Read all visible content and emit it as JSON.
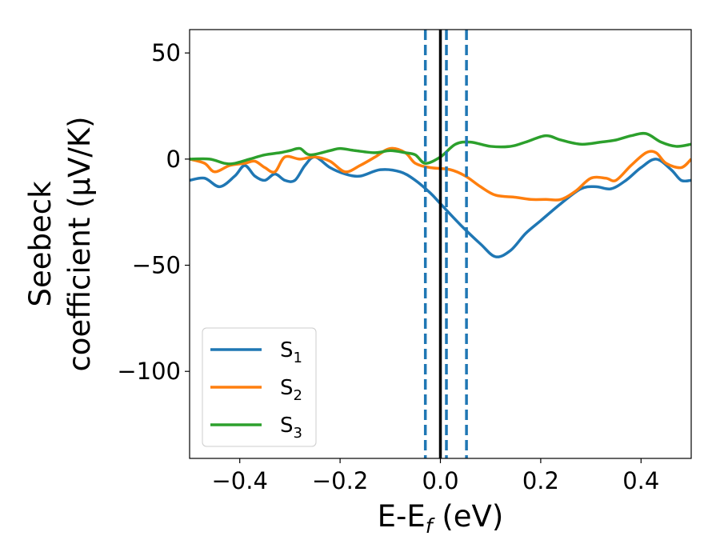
{
  "chart_data": {
    "type": "line",
    "xlabel": "E-E",
    "xlabel_sub": "f",
    "xlabel_unit": " (eV)",
    "ylabel_line1": "Seebeck",
    "ylabel_line2": "coefficient  (μV/K)",
    "xlim": [
      -0.5,
      0.5
    ],
    "ylim": [
      -141,
      61
    ],
    "xticks": [
      -0.4,
      -0.2,
      0.0,
      0.2,
      0.4
    ],
    "xtick_labels": [
      "−0.4",
      "−0.2",
      "0.0",
      "0.2",
      "0.4"
    ],
    "yticks": [
      50,
      0,
      -50,
      -100
    ],
    "ytick_labels": [
      "50",
      "0",
      "−50",
      "−100"
    ],
    "grid": false,
    "legend_position": "lower-left",
    "vlines": [
      {
        "x": 0.0,
        "style": "solid",
        "color": "#000000"
      },
      {
        "x": -0.03,
        "style": "dashed",
        "color": "#1f77b4"
      },
      {
        "x": 0.012,
        "style": "dashed",
        "color": "#1f77b4"
      },
      {
        "x": 0.052,
        "style": "dashed",
        "color": "#1f77b4"
      }
    ],
    "series": [
      {
        "name": "S",
        "sub": "1",
        "color": "#1f77b4",
        "points": [
          [
            -0.5,
            -10
          ],
          [
            -0.47,
            -9
          ],
          [
            -0.44,
            -13
          ],
          [
            -0.41,
            -8
          ],
          [
            -0.39,
            -3
          ],
          [
            -0.37,
            -8
          ],
          [
            -0.35,
            -10
          ],
          [
            -0.33,
            -7
          ],
          [
            -0.31,
            -10
          ],
          [
            -0.29,
            -10
          ],
          [
            -0.27,
            -3
          ],
          [
            -0.25,
            1
          ],
          [
            -0.22,
            -4
          ],
          [
            -0.19,
            -7
          ],
          [
            -0.16,
            -8
          ],
          [
            -0.12,
            -5
          ],
          [
            -0.08,
            -6
          ],
          [
            -0.05,
            -10
          ],
          [
            -0.02,
            -16
          ],
          [
            0.0,
            -21
          ],
          [
            0.04,
            -31
          ],
          [
            0.08,
            -40
          ],
          [
            0.11,
            -46
          ],
          [
            0.14,
            -43
          ],
          [
            0.17,
            -35
          ],
          [
            0.2,
            -29
          ],
          [
            0.24,
            -21
          ],
          [
            0.28,
            -14
          ],
          [
            0.31,
            -13
          ],
          [
            0.34,
            -14
          ],
          [
            0.37,
            -10
          ],
          [
            0.4,
            -4
          ],
          [
            0.43,
            0
          ],
          [
            0.46,
            -5
          ],
          [
            0.48,
            -10
          ],
          [
            0.5,
            -10
          ]
        ]
      },
      {
        "name": "S",
        "sub": "2",
        "color": "#ff7f0e",
        "points": [
          [
            -0.5,
            0
          ],
          [
            -0.47,
            -2
          ],
          [
            -0.45,
            -6
          ],
          [
            -0.42,
            -3
          ],
          [
            -0.39,
            -2
          ],
          [
            -0.37,
            -1
          ],
          [
            -0.35,
            -4
          ],
          [
            -0.33,
            -6
          ],
          [
            -0.31,
            1
          ],
          [
            -0.28,
            0
          ],
          [
            -0.25,
            1
          ],
          [
            -0.22,
            -1
          ],
          [
            -0.19,
            -6
          ],
          [
            -0.16,
            -3
          ],
          [
            -0.13,
            1
          ],
          [
            -0.1,
            5
          ],
          [
            -0.07,
            3
          ],
          [
            -0.05,
            -2
          ],
          [
            -0.02,
            -4
          ],
          [
            0.02,
            -5
          ],
          [
            0.05,
            -8
          ],
          [
            0.08,
            -13
          ],
          [
            0.11,
            -17
          ],
          [
            0.15,
            -18
          ],
          [
            0.18,
            -19
          ],
          [
            0.21,
            -19
          ],
          [
            0.24,
            -19
          ],
          [
            0.27,
            -15
          ],
          [
            0.3,
            -9
          ],
          [
            0.33,
            -9
          ],
          [
            0.35,
            -10
          ],
          [
            0.38,
            -3
          ],
          [
            0.41,
            3
          ],
          [
            0.43,
            3
          ],
          [
            0.45,
            -2
          ],
          [
            0.48,
            -4
          ],
          [
            0.5,
            0
          ]
        ]
      },
      {
        "name": "S",
        "sub": "3",
        "color": "#2ca02c",
        "points": [
          [
            -0.5,
            0
          ],
          [
            -0.46,
            0
          ],
          [
            -0.43,
            -2
          ],
          [
            -0.41,
            -2
          ],
          [
            -0.38,
            0
          ],
          [
            -0.35,
            2
          ],
          [
            -0.32,
            3
          ],
          [
            -0.3,
            4
          ],
          [
            -0.28,
            5
          ],
          [
            -0.26,
            2
          ],
          [
            -0.22,
            4
          ],
          [
            -0.2,
            5
          ],
          [
            -0.17,
            4
          ],
          [
            -0.13,
            3
          ],
          [
            -0.1,
            4
          ],
          [
            -0.07,
            3
          ],
          [
            -0.05,
            2
          ],
          [
            -0.03,
            -2
          ],
          [
            0.0,
            1
          ],
          [
            0.03,
            7
          ],
          [
            0.06,
            8
          ],
          [
            0.1,
            6
          ],
          [
            0.14,
            6
          ],
          [
            0.17,
            8
          ],
          [
            0.21,
            11
          ],
          [
            0.24,
            9
          ],
          [
            0.28,
            7
          ],
          [
            0.32,
            8
          ],
          [
            0.35,
            9
          ],
          [
            0.38,
            11
          ],
          [
            0.41,
            12
          ],
          [
            0.44,
            8
          ],
          [
            0.47,
            6
          ],
          [
            0.5,
            7
          ]
        ]
      }
    ]
  }
}
